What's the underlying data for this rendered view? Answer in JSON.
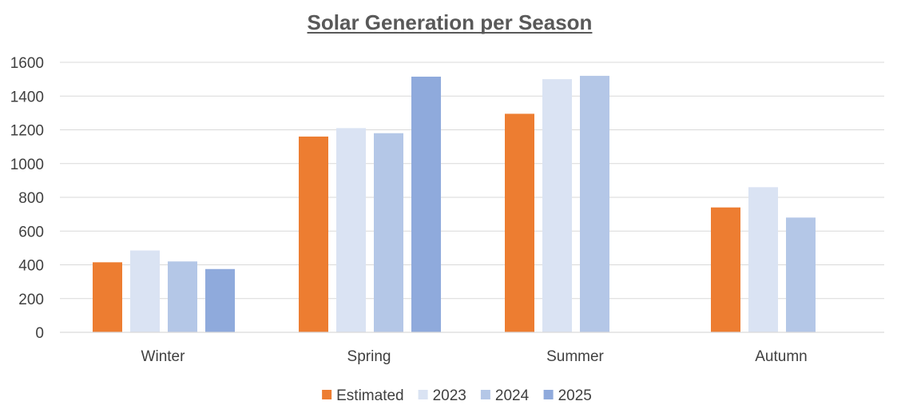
{
  "chart_data": {
    "type": "bar",
    "title": "Solar Generation per Season",
    "xlabel": "",
    "ylabel": "",
    "categories": [
      "Winter",
      "Spring",
      "Summer",
      "Autumn"
    ],
    "series": [
      {
        "name": "Estimated",
        "values": [
          415,
          1160,
          1295,
          740
        ],
        "color": "#ED7D31"
      },
      {
        "name": "2023",
        "values": [
          485,
          1210,
          1500,
          860
        ],
        "color": "#DAE3F3"
      },
      {
        "name": "2024",
        "values": [
          420,
          1180,
          1520,
          680
        ],
        "color": "#B4C7E7"
      },
      {
        "name": "2025",
        "values": [
          375,
          1515,
          null,
          null
        ],
        "color": "#8FAADC"
      }
    ],
    "ylim": [
      0,
      1600
    ],
    "yticks": [
      0,
      200,
      400,
      600,
      800,
      1000,
      1200,
      1400,
      1600
    ],
    "grid": true,
    "legend": "bottom",
    "gridline_color": "#D9D9D9",
    "text_color": "#404040",
    "title_color": "#595959"
  }
}
